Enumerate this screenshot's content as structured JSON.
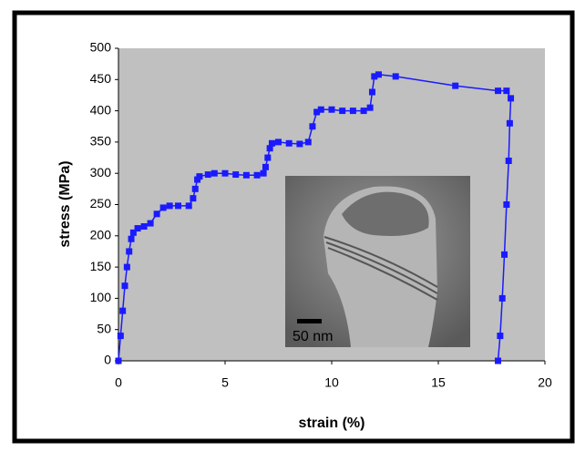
{
  "chart_data": {
    "type": "line",
    "x_label": "strain (%)",
    "y_label": "stress (MPa)",
    "x": [
      0,
      0.1,
      0.2,
      0.3,
      0.4,
      0.5,
      0.6,
      0.7,
      0.9,
      1.2,
      1.5,
      1.8,
      2.1,
      2.4,
      2.8,
      3.3,
      3.5,
      3.6,
      3.7,
      3.8,
      4.2,
      4.5,
      5,
      5.5,
      6,
      6.5,
      6.8,
      6.9,
      7,
      7.1,
      7.2,
      7.5,
      8,
      8.5,
      8.9,
      9.1,
      9.3,
      9.5,
      10,
      10.5,
      11,
      11.5,
      11.8,
      11.9,
      12,
      12.2,
      13,
      15.8,
      17.8,
      18.2,
      18.4,
      18.35,
      18.3,
      18.2,
      18.1,
      18,
      17.9,
      17.8
    ],
    "values": [
      0,
      40,
      80,
      120,
      150,
      175,
      195,
      205,
      212,
      215,
      220,
      235,
      245,
      248,
      248,
      248,
      260,
      275,
      290,
      295,
      298,
      300,
      300,
      298,
      297,
      297,
      300,
      310,
      325,
      340,
      348,
      350,
      348,
      347,
      350,
      375,
      398,
      402,
      402,
      400,
      400,
      400,
      405,
      430,
      455,
      458,
      455,
      440,
      432,
      432,
      420,
      380,
      320,
      250,
      170,
      100,
      40,
      0
    ],
    "color": "#1a1aff",
    "xlim": [
      0,
      20
    ],
    "xticks": [
      0,
      5,
      10,
      15,
      20
    ],
    "ylim": [
      0,
      500
    ],
    "yticks": [
      0,
      50,
      100,
      150,
      200,
      250,
      300,
      350,
      400,
      450,
      500
    ],
    "inset_label": "50 nm"
  }
}
